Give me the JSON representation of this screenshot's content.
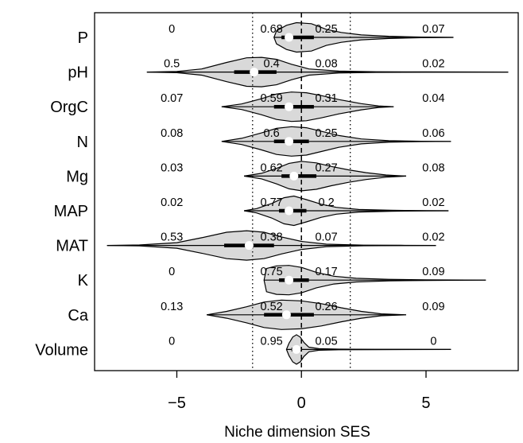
{
  "chart_data": {
    "type": "violin",
    "xlabel": "Niche dimension SES",
    "xlim": [
      -8.3,
      8.7
    ],
    "xticks": [
      -5,
      0,
      5
    ],
    "xtick_labels": [
      "−5",
      "0",
      "5"
    ],
    "reference_lines": [
      {
        "x": -1.96,
        "style": "dotted"
      },
      {
        "x": 0,
        "style": "dashed"
      },
      {
        "x": 1.96,
        "style": "dotted"
      }
    ],
    "categories": [
      "P",
      "pH",
      "OrgC",
      "N",
      "Mg",
      "MAP",
      "MAT",
      "K",
      "Ca",
      "Volume"
    ],
    "series": [
      {
        "category": "P",
        "min": -1.1,
        "max": 6.1,
        "q1": -0.8,
        "median": -0.5,
        "q3": 0.5,
        "proportions": [
          "0",
          "0.68",
          "0.25",
          "0.07"
        ],
        "density_x": [
          -1.1,
          -1.0,
          -0.6,
          -0.2,
          0.4,
          1.0,
          1.6,
          2.4,
          3.5,
          4.8,
          6.1
        ],
        "density_w": [
          0.0,
          0.42,
          0.78,
          0.95,
          0.88,
          0.52,
          0.32,
          0.16,
          0.07,
          0.02,
          0.0
        ]
      },
      {
        "category": "pH",
        "min": -6.2,
        "max": 8.3,
        "q1": -2.7,
        "median": -1.9,
        "q3": -1.0,
        "proportions": [
          "0.5",
          "0.4",
          "0.08",
          "0.02"
        ],
        "density_x": [
          -6.2,
          -5.0,
          -4.0,
          -3.0,
          -2.2,
          -1.6,
          -1.0,
          -0.4,
          0.3,
          1.5,
          3.0,
          5.0,
          8.3
        ],
        "density_w": [
          0.0,
          0.04,
          0.2,
          0.62,
          0.92,
          0.95,
          0.82,
          0.5,
          0.2,
          0.06,
          0.02,
          0.01,
          0.0
        ]
      },
      {
        "category": "OrgC",
        "min": -3.2,
        "max": 3.7,
        "q1": -1.1,
        "median": -0.5,
        "q3": 0.5,
        "proportions": [
          "0.07",
          "0.59",
          "0.31",
          "0.04"
        ],
        "density_x": [
          -3.2,
          -2.4,
          -1.6,
          -1.0,
          -0.4,
          0.2,
          0.8,
          1.5,
          2.4,
          3.1,
          3.7
        ],
        "density_w": [
          0.0,
          0.18,
          0.52,
          0.82,
          0.95,
          0.9,
          0.72,
          0.46,
          0.2,
          0.05,
          0.0
        ]
      },
      {
        "category": "N",
        "min": -3.2,
        "max": 6.0,
        "q1": -1.1,
        "median": -0.5,
        "q3": 0.3,
        "proportions": [
          "0.08",
          "0.6",
          "0.25",
          "0.06"
        ],
        "density_x": [
          -3.2,
          -2.4,
          -1.6,
          -1.0,
          -0.4,
          0.2,
          0.8,
          1.5,
          2.4,
          3.5,
          4.8,
          6.0
        ],
        "density_w": [
          0.0,
          0.2,
          0.55,
          0.84,
          0.95,
          0.88,
          0.65,
          0.38,
          0.16,
          0.05,
          0.01,
          0.0
        ]
      },
      {
        "category": "Mg",
        "min": -2.3,
        "max": 4.2,
        "q1": -0.8,
        "median": -0.3,
        "q3": 0.6,
        "proportions": [
          "0.03",
          "0.62",
          "0.27",
          "0.08"
        ],
        "density_x": [
          -2.3,
          -1.6,
          -1.0,
          -0.5,
          0.0,
          0.6,
          1.2,
          1.9,
          2.6,
          3.4,
          4.2
        ],
        "density_w": [
          0.0,
          0.18,
          0.5,
          0.82,
          0.95,
          0.85,
          0.62,
          0.4,
          0.22,
          0.07,
          0.0
        ]
      },
      {
        "category": "MAP",
        "min": -2.3,
        "max": 5.9,
        "q1": -0.9,
        "median": -0.5,
        "q3": 0.2,
        "proportions": [
          "0.02",
          "0.77",
          "0.2",
          "0.02"
        ],
        "density_x": [
          -2.3,
          -1.8,
          -1.2,
          -0.7,
          -0.3,
          0.2,
          0.8,
          1.4,
          2.3,
          3.6,
          5.0,
          5.9
        ],
        "density_w": [
          0.0,
          0.14,
          0.46,
          0.84,
          0.95,
          0.72,
          0.42,
          0.22,
          0.08,
          0.03,
          0.01,
          0.0
        ]
      },
      {
        "category": "MAT",
        "min": -7.8,
        "max": 5.4,
        "q1": -3.1,
        "median": -2.1,
        "q3": -1.1,
        "proportions": [
          "0.53",
          "0.38",
          "0.07",
          "0.02"
        ],
        "density_x": [
          -7.8,
          -6.5,
          -5.0,
          -4.0,
          -3.0,
          -2.2,
          -1.5,
          -0.8,
          0.0,
          1.0,
          2.5,
          4.0,
          5.4
        ],
        "density_w": [
          0.0,
          0.03,
          0.18,
          0.5,
          0.85,
          0.95,
          0.85,
          0.55,
          0.26,
          0.08,
          0.02,
          0.01,
          0.0
        ]
      },
      {
        "category": "K",
        "min": -1.5,
        "max": 7.4,
        "q1": -0.9,
        "median": -0.5,
        "q3": 0.3,
        "proportions": [
          "0",
          "0.75",
          "0.17",
          "0.09"
        ],
        "density_x": [
          -1.5,
          -1.4,
          -1.0,
          -0.5,
          0.0,
          0.6,
          1.3,
          2.2,
          3.5,
          5.0,
          7.4
        ],
        "density_w": [
          0.0,
          0.75,
          0.92,
          0.95,
          0.82,
          0.5,
          0.25,
          0.12,
          0.05,
          0.02,
          0.0
        ]
      },
      {
        "category": "Ca",
        "min": -3.8,
        "max": 4.2,
        "q1": -1.5,
        "median": -0.6,
        "q3": 0.5,
        "proportions": [
          "0.13",
          "0.52",
          "0.26",
          "0.09"
        ],
        "density_x": [
          -3.8,
          -3.0,
          -2.2,
          -1.5,
          -0.8,
          0.0,
          0.8,
          1.6,
          2.4,
          3.2,
          4.2
        ],
        "density_w": [
          0.0,
          0.22,
          0.52,
          0.82,
          0.95,
          0.9,
          0.72,
          0.45,
          0.22,
          0.06,
          0.0
        ]
      },
      {
        "category": "Volume",
        "min": -0.6,
        "max": 6.0,
        "q1": -0.4,
        "median": -0.2,
        "q3": 0.0,
        "proportions": [
          "0",
          "0.95",
          "0.05",
          "0"
        ],
        "density_x": [
          -0.6,
          -0.5,
          -0.35,
          -0.2,
          -0.05,
          0.1,
          0.3,
          0.7,
          1.5,
          3.0,
          6.0
        ],
        "density_w": [
          0.0,
          0.4,
          0.8,
          0.95,
          0.8,
          0.45,
          0.15,
          0.05,
          0.02,
          0.01,
          0.0
        ]
      }
    ]
  }
}
